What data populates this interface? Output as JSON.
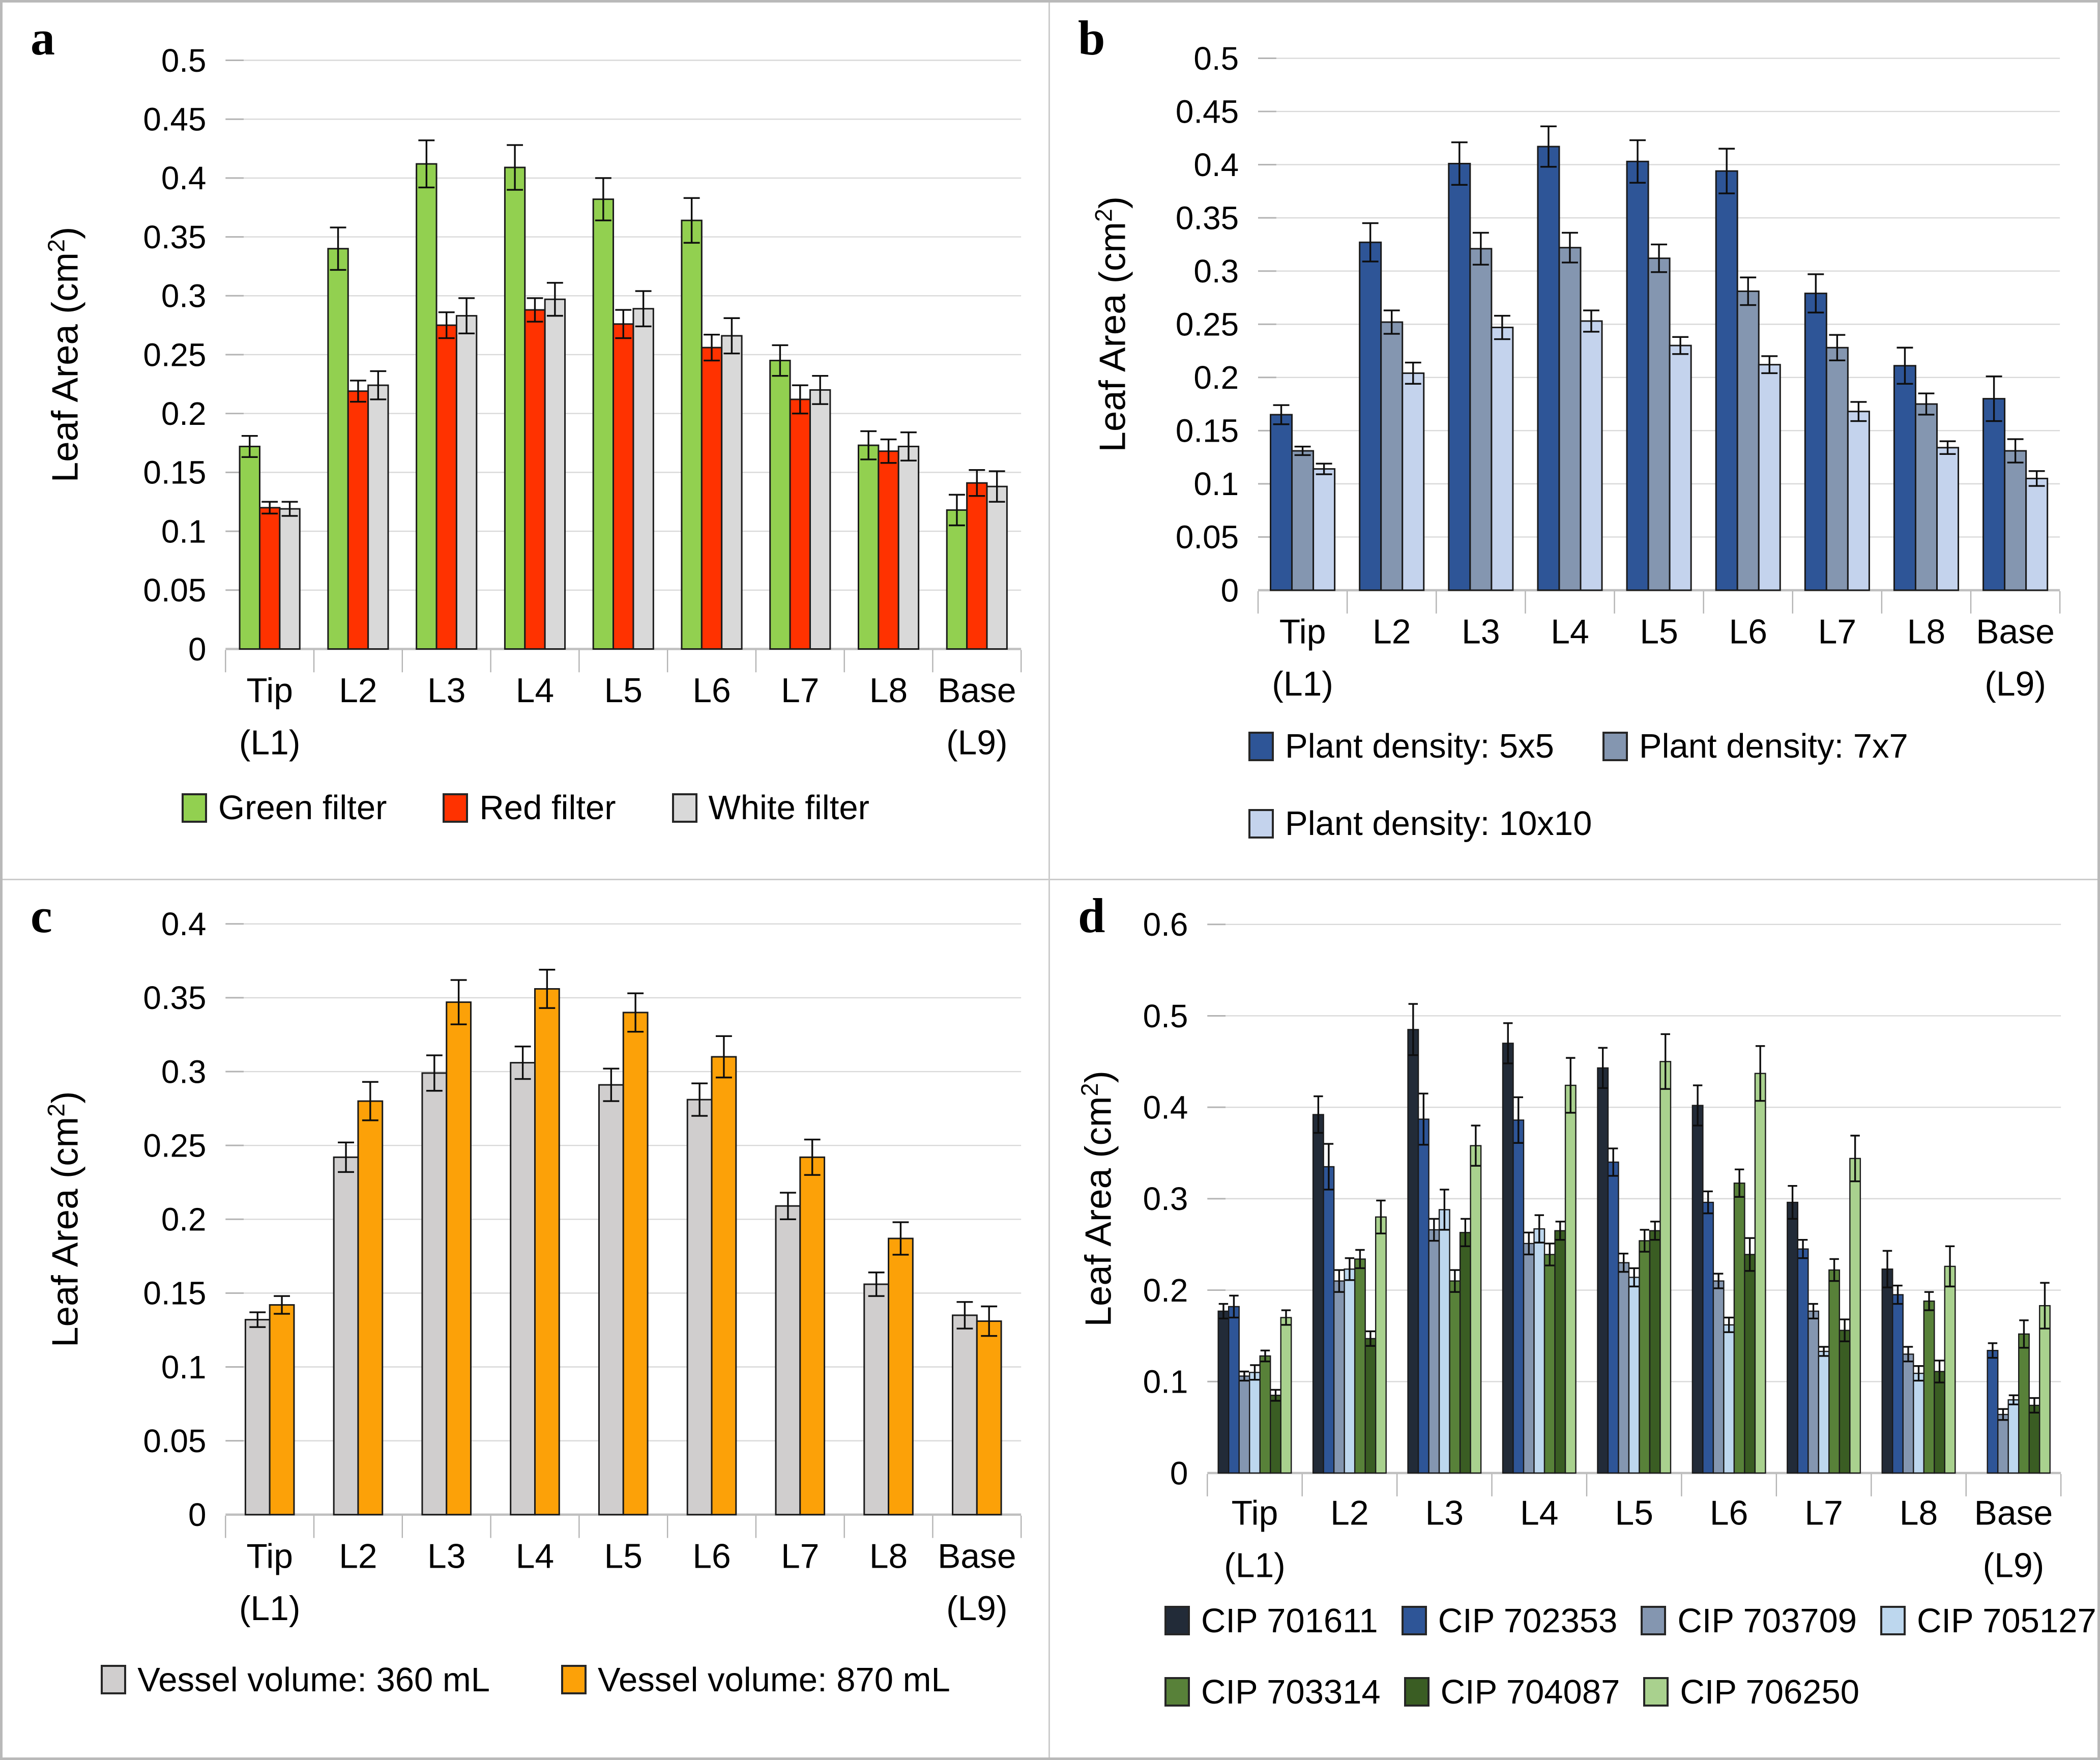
{
  "figure": {
    "background": "#ffffff",
    "outer_border_color": "#b9b9b9",
    "divider_color": "#cccccc",
    "gridline_color": "#d9d9d9",
    "axis_line_color": "#bfbfbf",
    "tick_color": "#b3b3b3",
    "bar_outline_color": "#1a1a1a",
    "error_bar_color": "#0d0d0d"
  },
  "chart_data": [
    {
      "panel_letter": "a",
      "type": "bar",
      "title": "",
      "xlabel": "",
      "ylabel": "Leaf Area (cm²)",
      "categories": [
        "Tip\n(L1)",
        "L2",
        "L3",
        "L4",
        "L5",
        "L6",
        "L7",
        "L8",
        "Base\n(L9)"
      ],
      "ylim": [
        0,
        0.5
      ],
      "ytick_labels": [
        "0",
        "0.05",
        "0.1",
        "0.15",
        "0.2",
        "0.25",
        "0.3",
        "0.35",
        "0.4",
        "0.45",
        "0.5"
      ],
      "grid": true,
      "legend_position": "bottom",
      "legend_rows": [
        [
          0,
          1,
          2
        ]
      ],
      "series": [
        {
          "name": "Green filter",
          "color": "#92D050",
          "values": [
            0.172,
            0.34,
            0.412,
            0.409,
            0.382,
            0.364,
            0.245,
            0.173,
            0.118
          ],
          "errors": [
            0.009,
            0.018,
            0.02,
            0.019,
            0.018,
            0.019,
            0.013,
            0.012,
            0.013
          ]
        },
        {
          "name": "Red filter",
          "color": "#FF3200",
          "values": [
            0.12,
            0.219,
            0.275,
            0.288,
            0.276,
            0.256,
            0.212,
            0.168,
            0.141
          ],
          "errors": [
            0.005,
            0.009,
            0.011,
            0.01,
            0.012,
            0.011,
            0.012,
            0.01,
            0.011
          ]
        },
        {
          "name": "White filter",
          "color": "#D9D9D9",
          "values": [
            0.119,
            0.224,
            0.283,
            0.297,
            0.289,
            0.266,
            0.22,
            0.172,
            0.138
          ],
          "errors": [
            0.006,
            0.012,
            0.015,
            0.014,
            0.015,
            0.015,
            0.012,
            0.012,
            0.013
          ]
        }
      ]
    },
    {
      "panel_letter": "b",
      "type": "bar",
      "title": "",
      "xlabel": "",
      "ylabel": "Leaf Area (cm²)",
      "categories": [
        "Tip\n(L1)",
        "L2",
        "L3",
        "L4",
        "L5",
        "L6",
        "L7",
        "L8",
        "Base\n(L9)"
      ],
      "ylim": [
        0,
        0.5
      ],
      "ytick_labels": [
        "0",
        "0.05",
        "0.1",
        "0.15",
        "0.2",
        "0.25",
        "0.3",
        "0.35",
        "0.4",
        "0.45",
        "0.5"
      ],
      "grid": true,
      "legend_position": "bottom",
      "legend_rows": [
        [
          0,
          1
        ],
        [
          2
        ]
      ],
      "series": [
        {
          "name": "Plant density: 5x5",
          "color": "#2E5597",
          "values": [
            0.165,
            0.327,
            0.401,
            0.417,
            0.403,
            0.394,
            0.279,
            0.211,
            0.18
          ],
          "errors": [
            0.009,
            0.018,
            0.02,
            0.019,
            0.02,
            0.021,
            0.018,
            0.017,
            0.021
          ]
        },
        {
          "name": "Plant density: 7x7",
          "color": "#8496B0",
          "values": [
            0.131,
            0.252,
            0.321,
            0.322,
            0.312,
            0.281,
            0.228,
            0.175,
            0.131
          ],
          "errors": [
            0.004,
            0.011,
            0.015,
            0.014,
            0.013,
            0.013,
            0.012,
            0.01,
            0.011
          ]
        },
        {
          "name": "Plant density: 10x10",
          "color": "#C4D3ED",
          "values": [
            0.114,
            0.204,
            0.247,
            0.253,
            0.23,
            0.212,
            0.168,
            0.134,
            0.105
          ],
          "errors": [
            0.005,
            0.01,
            0.011,
            0.01,
            0.008,
            0.008,
            0.009,
            0.006,
            0.007
          ]
        }
      ]
    },
    {
      "panel_letter": "c",
      "type": "bar",
      "title": "",
      "xlabel": "",
      "ylabel": "Leaf Area (cm²)",
      "categories": [
        "Tip\n(L1)",
        "L2",
        "L3",
        "L4",
        "L5",
        "L6",
        "L7",
        "L8",
        "Base\n(L9)"
      ],
      "ylim": [
        0,
        0.4
      ],
      "ytick_labels": [
        "0",
        "0.05",
        "0.1",
        "0.15",
        "0.2",
        "0.25",
        "0.3",
        "0.35",
        "0.4"
      ],
      "grid": true,
      "legend_position": "bottom",
      "legend_rows": [
        [
          0,
          1
        ]
      ],
      "series": [
        {
          "name": "Vessel volume: 360 mL",
          "color": "#D0CECE",
          "values": [
            0.132,
            0.242,
            0.299,
            0.306,
            0.291,
            0.281,
            0.209,
            0.156,
            0.135
          ],
          "errors": [
            0.005,
            0.01,
            0.012,
            0.011,
            0.011,
            0.011,
            0.009,
            0.008,
            0.009
          ]
        },
        {
          "name": "Vessel volume: 870 mL",
          "color": "#FCA108",
          "values": [
            0.142,
            0.28,
            0.347,
            0.356,
            0.34,
            0.31,
            0.242,
            0.187,
            0.131
          ],
          "errors": [
            0.006,
            0.013,
            0.015,
            0.013,
            0.013,
            0.014,
            0.012,
            0.011,
            0.01
          ]
        }
      ]
    },
    {
      "panel_letter": "d",
      "type": "bar",
      "title": "",
      "xlabel": "",
      "ylabel": "Leaf Area (cm²)",
      "categories": [
        "Tip\n(L1)",
        "L2",
        "L3",
        "L4",
        "L5",
        "L6",
        "L7",
        "L8",
        "Base\n(L9)"
      ],
      "ylim": [
        0,
        0.6
      ],
      "ytick_labels": [
        "0",
        "0.1",
        "0.2",
        "0.3",
        "0.4",
        "0.5",
        "0.6"
      ],
      "grid": true,
      "legend_position": "bottom",
      "legend_rows": [
        [
          0,
          1,
          2,
          3
        ],
        [
          4,
          5,
          6
        ]
      ],
      "series": [
        {
          "name": "CIP 701611",
          "color": "#222B38",
          "values": [
            0.177,
            0.392,
            0.485,
            0.47,
            0.443,
            0.402,
            0.296,
            0.223,
            null
          ],
          "errors": [
            0.008,
            0.02,
            0.028,
            0.022,
            0.022,
            0.022,
            0.018,
            0.02,
            null
          ]
        },
        {
          "name": "CIP 702353",
          "color": "#2E5597",
          "values": [
            0.182,
            0.335,
            0.387,
            0.386,
            0.34,
            0.296,
            0.245,
            0.195,
            0.134
          ],
          "errors": [
            0.012,
            0.025,
            0.028,
            0.025,
            0.015,
            0.012,
            0.01,
            0.01,
            0.008
          ]
        },
        {
          "name": "CIP 703709",
          "color": "#8496B0",
          "values": [
            0.106,
            0.21,
            0.266,
            0.251,
            0.23,
            0.21,
            0.177,
            0.13,
            0.064
          ],
          "errors": [
            0.005,
            0.012,
            0.012,
            0.012,
            0.01,
            0.008,
            0.008,
            0.008,
            0.006
          ]
        },
        {
          "name": "CIP 705127",
          "color": "#BDD7EE",
          "values": [
            0.11,
            0.223,
            0.288,
            0.267,
            0.214,
            0.162,
            0.133,
            0.109,
            0.08
          ],
          "errors": [
            0.008,
            0.012,
            0.022,
            0.015,
            0.01,
            0.008,
            0.005,
            0.008,
            0.005
          ]
        },
        {
          "name": "CIP 703314",
          "color": "#588139",
          "values": [
            0.128,
            0.234,
            0.21,
            0.239,
            0.254,
            0.317,
            0.222,
            0.188,
            0.152
          ],
          "errors": [
            0.006,
            0.01,
            0.012,
            0.012,
            0.012,
            0.015,
            0.012,
            0.01,
            0.015
          ]
        },
        {
          "name": "CIP 704087",
          "color": "#3A5D23",
          "values": [
            0.085,
            0.147,
            0.263,
            0.265,
            0.265,
            0.239,
            0.156,
            0.111,
            0.074
          ],
          "errors": [
            0.006,
            0.008,
            0.015,
            0.01,
            0.01,
            0.018,
            0.012,
            0.012,
            0.008
          ]
        },
        {
          "name": "CIP 706250",
          "color": "#A9D18E",
          "values": [
            0.17,
            0.28,
            0.358,
            0.424,
            0.45,
            0.437,
            0.344,
            0.226,
            0.183
          ],
          "errors": [
            0.008,
            0.018,
            0.022,
            0.03,
            0.03,
            0.03,
            0.025,
            0.022,
            0.025
          ]
        }
      ]
    }
  ]
}
